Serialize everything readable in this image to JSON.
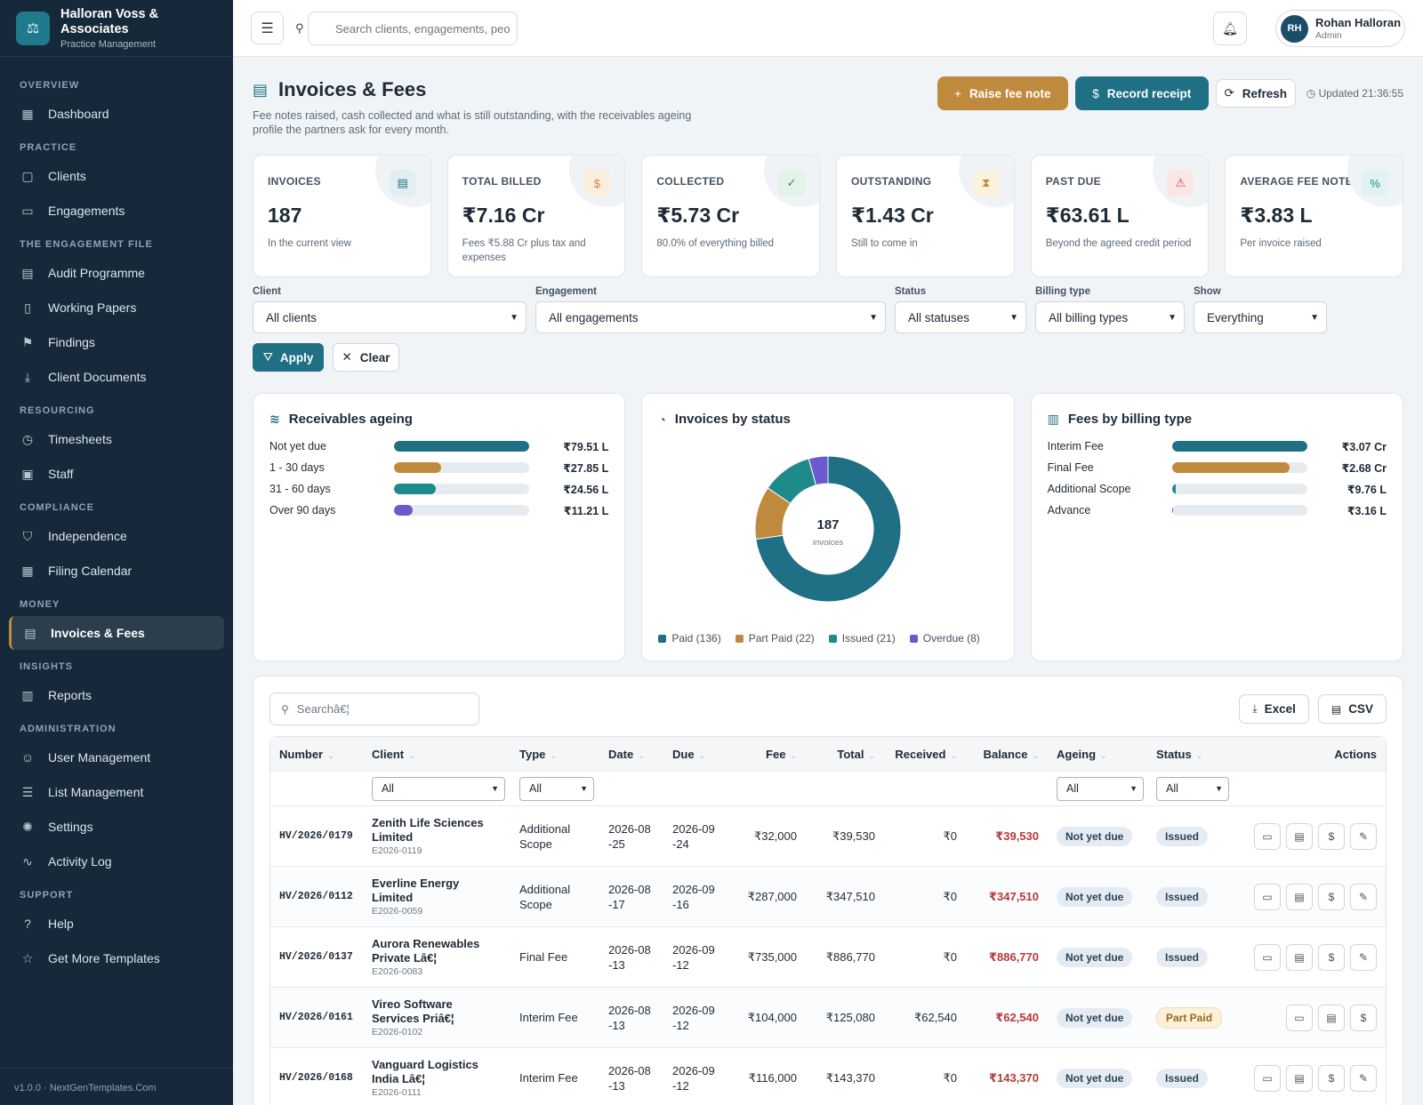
{
  "brand": {
    "name": "Halloran Voss & Associates",
    "sub": "Practice Management",
    "logo_icon": "⚖"
  },
  "nav": [
    {
      "section": "OVERVIEW",
      "items": [
        {
          "label": "Dashboard",
          "icon": "▦",
          "name": "dashboard"
        }
      ]
    },
    {
      "section": "PRACTICE",
      "items": [
        {
          "label": "Clients",
          "icon": "▢",
          "name": "clients"
        },
        {
          "label": "Engagements",
          "icon": "▭",
          "name": "engagements"
        }
      ]
    },
    {
      "section": "THE ENGAGEMENT FILE",
      "items": [
        {
          "label": "Audit Programme",
          "icon": "▤",
          "name": "audit-programme"
        },
        {
          "label": "Working Papers",
          "icon": "▯",
          "name": "working-papers"
        },
        {
          "label": "Findings",
          "icon": "⚑",
          "name": "findings"
        },
        {
          "label": "Client Documents",
          "icon": "⤓",
          "name": "client-documents"
        }
      ]
    },
    {
      "section": "RESOURCING",
      "items": [
        {
          "label": "Timesheets",
          "icon": "◷",
          "name": "timesheets"
        },
        {
          "label": "Staff",
          "icon": "▣",
          "name": "staff"
        }
      ]
    },
    {
      "section": "COMPLIANCE",
      "items": [
        {
          "label": "Independence",
          "icon": "⛉",
          "name": "independence"
        },
        {
          "label": "Filing Calendar",
          "icon": "▦",
          "name": "filing-calendar"
        }
      ]
    },
    {
      "section": "MONEY",
      "items": [
        {
          "label": "Invoices & Fees",
          "icon": "▤",
          "name": "invoices-fees",
          "active": true
        }
      ]
    },
    {
      "section": "INSIGHTS",
      "items": [
        {
          "label": "Reports",
          "icon": "▥",
          "name": "reports"
        }
      ]
    },
    {
      "section": "ADMINISTRATION",
      "items": [
        {
          "label": "User Management",
          "icon": "☺",
          "name": "user-management"
        },
        {
          "label": "List Management",
          "icon": "☰",
          "name": "list-management"
        },
        {
          "label": "Settings",
          "icon": "✺",
          "name": "settings"
        },
        {
          "label": "Activity Log",
          "icon": "∿",
          "name": "activity-log"
        }
      ]
    },
    {
      "section": "SUPPORT",
      "items": [
        {
          "label": "Help",
          "icon": "?",
          "name": "help"
        },
        {
          "label": "Get More Templates",
          "icon": "☆",
          "name": "get-more-templates"
        }
      ]
    }
  ],
  "version": "v1.0.0 · NextGenTemplates.Com",
  "topbar": {
    "search_placeholder": "Search clients, engagements, peo",
    "user_initials": "RH",
    "user_name": "Rohan Halloran",
    "user_role": "Admin"
  },
  "page": {
    "title": "Invoices & Fees",
    "subtitle": "Fee notes raised, cash collected and what is still outstanding, with the receivables ageing profile the partners ask for every month.",
    "raise_label": "Raise fee note",
    "record_label": "Record receipt",
    "refresh_label": "Refresh",
    "updated": "Updated 21:36:55"
  },
  "kpis": [
    {
      "label": "INVOICES",
      "value": "187",
      "sub": "In the current view",
      "icon": "▤",
      "icon_color": "#1f6f85",
      "icon_bg": "#e3eef2",
      "name": "invoices"
    },
    {
      "label": "TOTAL BILLED",
      "value": "₹7.16 Cr",
      "sub": "Fees ₹5.88 Cr plus tax and expenses",
      "icon": "$",
      "icon_color": "#c08a3e",
      "icon_bg": "#faeedd",
      "name": "total-billed"
    },
    {
      "label": "COLLECTED",
      "value": "₹5.73 Cr",
      "sub": "80.0% of everything billed",
      "icon": "✓",
      "icon_color": "#2e8b57",
      "icon_bg": "#e3f3ea",
      "name": "collected"
    },
    {
      "label": "OUTSTANDING",
      "value": "₹1.43 Cr",
      "sub": "Still to come in",
      "icon": "⧗",
      "icon_color": "#c08a3e",
      "icon_bg": "#fbf2dc",
      "name": "outstanding"
    },
    {
      "label": "PAST DUE",
      "value": "₹63.61 L",
      "sub": "Beyond the agreed credit period",
      "icon": "⚠",
      "icon_color": "#c24a4a",
      "icon_bg": "#fbe6e6",
      "name": "past-due"
    },
    {
      "label": "AVERAGE FEE NOTE",
      "value": "₹3.83 L",
      "sub": "Per invoice raised",
      "icon": "%",
      "icon_color": "#1f8a8a",
      "icon_bg": "#e0f2f1",
      "name": "average-fee-note"
    }
  ],
  "filters": {
    "client": {
      "label": "Client",
      "value": "All clients"
    },
    "engagement": {
      "label": "Engagement",
      "value": "All engagements"
    },
    "status": {
      "label": "Status",
      "value": "All statuses"
    },
    "billing": {
      "label": "Billing type",
      "value": "All billing types"
    },
    "show": {
      "label": "Show",
      "value": "Everything"
    },
    "apply_label": "Apply",
    "clear_label": "Clear"
  },
  "ageing": {
    "title": "Receivables ageing",
    "rows": [
      {
        "label": "Not yet due",
        "value": "₹79.51 L",
        "pct": 100,
        "color": "#1f6f85"
      },
      {
        "label": "1 - 30 days",
        "value": "₹27.85 L",
        "pct": 35,
        "color": "#c08a3e"
      },
      {
        "label": "31 - 60 days",
        "value": "₹24.56 L",
        "pct": 31,
        "color": "#1f8a8a"
      },
      {
        "label": "Over 90 days",
        "value": "₹11.21 L",
        "pct": 14,
        "color": "#6a5acd"
      }
    ]
  },
  "status_chart": {
    "title": "Invoices by status",
    "total": "187",
    "total_label": "invoices",
    "chart_data": {
      "type": "pie",
      "categories": [
        "Paid",
        "Part Paid",
        "Issued",
        "Overdue"
      ],
      "values": [
        136,
        22,
        21,
        8
      ],
      "colors": [
        "#1f6f85",
        "#c08a3e",
        "#1f8a8a",
        "#6a5acd"
      ]
    },
    "legend": [
      "Paid (136)",
      "Part Paid (22)",
      "Issued (21)",
      "Overdue (8)"
    ]
  },
  "billing_chart": {
    "title": "Fees by billing type",
    "rows": [
      {
        "label": "Interim Fee",
        "value": "₹3.07 Cr",
        "pct": 100,
        "color": "#1f6f85"
      },
      {
        "label": "Final Fee",
        "value": "₹2.68 Cr",
        "pct": 87,
        "color": "#c08a3e"
      },
      {
        "label": "Additional Scope",
        "value": "₹9.76 L",
        "pct": 3,
        "color": "#1f8a8a"
      },
      {
        "label": "Advance",
        "value": "₹3.16 L",
        "pct": 1,
        "color": "#6a5acd"
      }
    ]
  },
  "table": {
    "search_placeholder": "Searchâ€¦",
    "excel_label": "Excel",
    "csv_label": "CSV",
    "headers": {
      "number": "Number",
      "client": "Client",
      "type": "Type",
      "date": "Date",
      "due": "Due",
      "fee": "Fee",
      "total": "Total",
      "received": "Received",
      "balance": "Balance",
      "ageing": "Ageing",
      "status": "Status",
      "actions": "Actions"
    },
    "filter_all": "All",
    "rows": [
      {
        "number": "HV/2026/0179",
        "client": "Zenith Life Sciences Limited",
        "code": "E2026-0119",
        "type": "Additional Scope",
        "date": "2026-08-25",
        "due": "2026-09-24",
        "fee": "₹32,000",
        "total": "₹39,530",
        "received": "₹0",
        "balance": "₹39,530",
        "ageing": "Not yet due",
        "status": "Issued",
        "edit": true
      },
      {
        "number": "HV/2026/0112",
        "client": "Everline Energy Limited",
        "code": "E2026-0059",
        "type": "Additional Scope",
        "date": "2026-08-17",
        "due": "2026-09-16",
        "fee": "₹287,000",
        "total": "₹347,510",
        "received": "₹0",
        "balance": "₹347,510",
        "ageing": "Not yet due",
        "status": "Issued",
        "edit": true
      },
      {
        "number": "HV/2026/0137",
        "client": "Aurora Renewables Private Lâ€¦",
        "code": "E2026-0083",
        "type": "Final Fee",
        "date": "2026-08-13",
        "due": "2026-09-12",
        "fee": "₹735,000",
        "total": "₹886,770",
        "received": "₹0",
        "balance": "₹886,770",
        "ageing": "Not yet due",
        "status": "Issued",
        "edit": true
      },
      {
        "number": "HV/2026/0161",
        "client": "Vireo Software Services Priâ€¦",
        "code": "E2026-0102",
        "type": "Interim Fee",
        "date": "2026-08-13",
        "due": "2026-09-12",
        "fee": "₹104,000",
        "total": "₹125,080",
        "received": "₹62,540",
        "balance": "₹62,540",
        "ageing": "Not yet due",
        "status": "Part Paid",
        "edit": false
      },
      {
        "number": "HV/2026/0168",
        "client": "Vanguard Logistics India Lâ€¦",
        "code": "E2026-0111",
        "type": "Interim Fee",
        "date": "2026-08-13",
        "due": "2026-09-12",
        "fee": "₹116,000",
        "total": "₹143,370",
        "received": "₹0",
        "balance": "₹143,370",
        "ageing": "Not yet due",
        "status": "Issued",
        "edit": true
      }
    ]
  }
}
